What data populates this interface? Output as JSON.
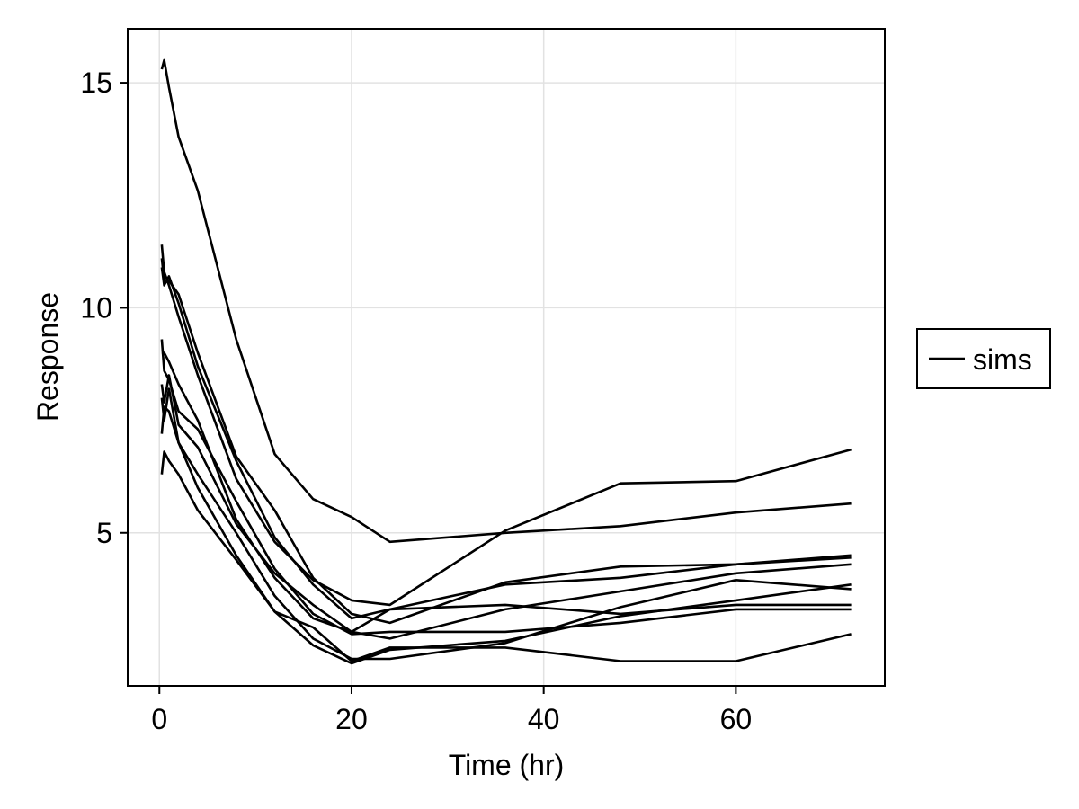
{
  "chart_data": {
    "type": "line",
    "xlabel": "Time (hr)",
    "ylabel": "Response",
    "xlim": [
      -3.3,
      75.5
    ],
    "ylim": [
      1.6,
      16.2
    ],
    "xticks": [
      0,
      20,
      40,
      60
    ],
    "yticks": [
      5,
      10,
      15
    ],
    "grid": true,
    "line_color": "#000000",
    "legend": {
      "position": "right",
      "entries": [
        {
          "label": "sims",
          "color": "#000000"
        }
      ]
    },
    "series": [
      {
        "x": [
          0.25,
          0.5,
          1,
          2,
          4,
          8,
          12,
          16,
          20,
          24,
          36,
          48,
          60,
          72
        ],
        "y": [
          15.3,
          15.5,
          14.9,
          13.8,
          12.6,
          9.3,
          6.75,
          5.75,
          5.35,
          4.8,
          5.0,
          5.15,
          5.45,
          5.65
        ]
      },
      {
        "x": [
          0.25,
          0.5,
          1,
          2,
          4,
          8,
          12,
          16,
          20,
          24,
          36,
          48,
          60,
          72
        ],
        "y": [
          11.1,
          10.6,
          10.6,
          10.3,
          9.0,
          6.7,
          5.5,
          4.0,
          3.2,
          3.0,
          3.9,
          4.25,
          4.3,
          4.45
        ]
      },
      {
        "x": [
          0.25,
          0.5,
          1,
          2,
          4,
          8,
          12,
          16,
          20,
          24,
          36,
          48,
          60,
          72
        ],
        "y": [
          11.4,
          10.8,
          10.5,
          9.8,
          8.5,
          6.2,
          4.8,
          3.95,
          3.5,
          3.4,
          5.05,
          6.1,
          6.15,
          6.85
        ]
      },
      {
        "x": [
          0.25,
          0.5,
          1,
          2,
          4,
          8,
          12,
          16,
          20,
          24,
          36,
          48,
          60,
          72
        ],
        "y": [
          10.9,
          10.5,
          10.7,
          10.1,
          8.7,
          6.6,
          4.9,
          3.85,
          3.1,
          3.3,
          3.85,
          4.0,
          4.3,
          4.5
        ]
      },
      {
        "x": [
          0.25,
          0.5,
          1,
          2,
          4,
          8,
          12,
          16,
          20,
          24,
          36,
          48,
          60,
          72
        ],
        "y": [
          9.3,
          8.6,
          8.4,
          7.7,
          7.3,
          5.7,
          4.2,
          3.2,
          2.75,
          2.8,
          2.8,
          3.0,
          3.3,
          3.3
        ]
      },
      {
        "x": [
          0.25,
          0.5,
          1,
          2,
          4,
          8,
          12,
          16,
          20,
          24,
          36,
          48,
          60,
          72
        ],
        "y": [
          9.0,
          9.0,
          8.8,
          8.3,
          7.5,
          5.3,
          4.0,
          3.1,
          2.8,
          2.65,
          3.3,
          3.7,
          4.1,
          4.3
        ]
      },
      {
        "x": [
          0.25,
          0.5,
          1,
          2,
          4,
          8,
          12,
          16,
          20,
          24,
          36,
          48,
          60,
          72
        ],
        "y": [
          8.3,
          7.9,
          8.5,
          7.4,
          6.9,
          5.2,
          4.1,
          3.4,
          2.8,
          3.3,
          3.4,
          3.2,
          3.4,
          3.4
        ]
      },
      {
        "x": [
          0.25,
          0.5,
          1,
          2,
          4,
          8,
          12,
          16,
          20,
          24,
          36,
          48,
          60,
          72
        ],
        "y": [
          8.0,
          7.5,
          8.2,
          7.0,
          6.3,
          5.0,
          3.6,
          2.65,
          2.2,
          2.2,
          2.55,
          3.35,
          3.95,
          3.75
        ]
      },
      {
        "x": [
          0.25,
          0.5,
          1,
          2,
          4,
          8,
          12,
          16,
          20,
          24,
          36,
          48,
          60,
          72
        ],
        "y": [
          7.2,
          7.8,
          7.7,
          7.0,
          6.0,
          4.5,
          3.25,
          2.9,
          2.15,
          2.45,
          2.45,
          2.15,
          2.15,
          2.75
        ]
      },
      {
        "x": [
          0.25,
          0.5,
          1,
          2,
          4,
          8,
          12,
          16,
          20,
          24,
          36,
          48,
          60,
          72
        ],
        "y": [
          6.3,
          6.8,
          6.6,
          6.3,
          5.5,
          4.4,
          3.25,
          2.5,
          2.1,
          2.4,
          2.6,
          3.15,
          3.5,
          3.85
        ]
      }
    ]
  }
}
